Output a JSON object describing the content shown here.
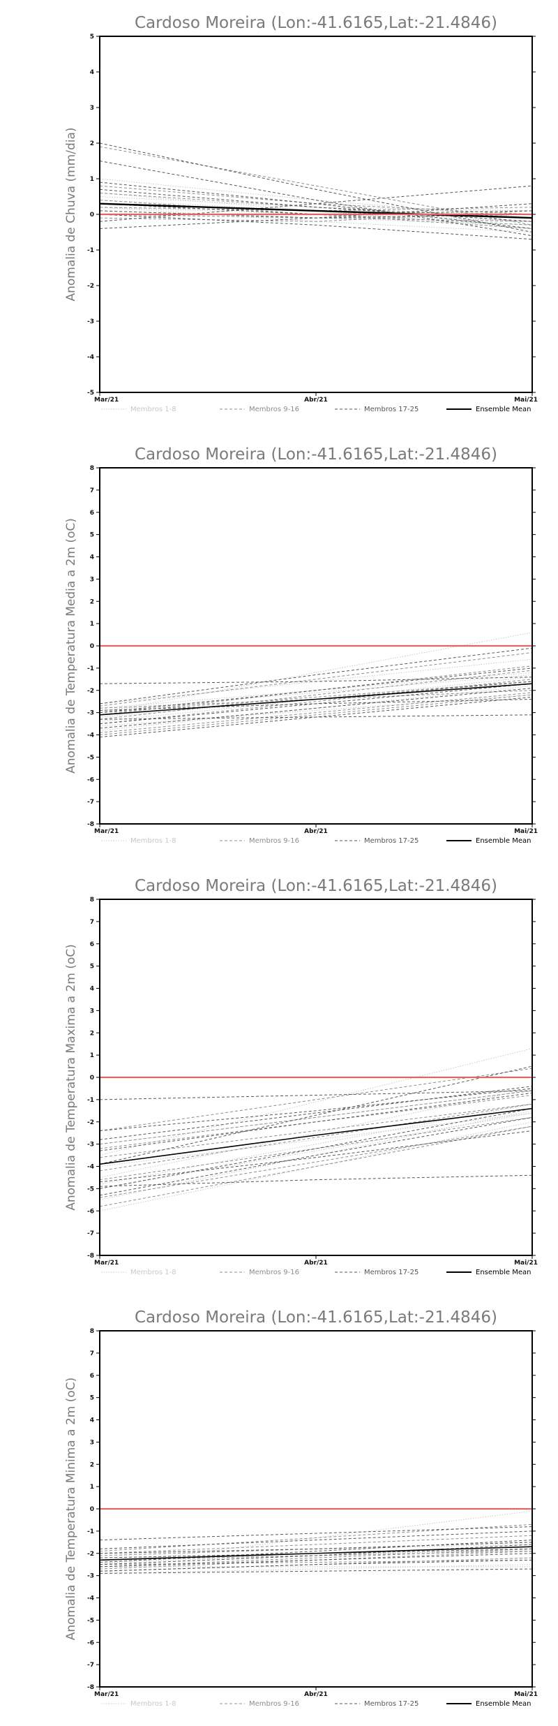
{
  "chart_data": [
    {
      "type": "line",
      "title": "Cardoso Moreira (Lon:-41.6165,Lat:-21.4846)",
      "ylabel": "Anomalia de Chuva (mm/dia)",
      "xlabel": "",
      "x": [
        "Mar/21",
        "Abr/21",
        "Mai/21"
      ],
      "ylim": [
        -5,
        5
      ],
      "yticks": [
        -5,
        -4,
        -3,
        -2,
        -1,
        0,
        1,
        2,
        3,
        4,
        5
      ],
      "grid": false,
      "reference_line": {
        "y": 0,
        "color": "#e06666"
      },
      "legend_position": "bottom",
      "series": [
        {
          "name": "Membros 1-8",
          "color": "#c8c8c8",
          "style": "dotted",
          "values": [
            [
              0.6,
              0.1,
              -0.4
            ],
            [
              0.2,
              0.0,
              -0.2
            ],
            [
              1.0,
              0.4,
              -0.1
            ],
            [
              0.5,
              0.2,
              0.1
            ],
            [
              0.1,
              -0.1,
              -0.3
            ],
            [
              0.3,
              0.1,
              0.0
            ],
            [
              0.4,
              0.1,
              -0.2
            ],
            [
              0.2,
              -0.2,
              -0.5
            ]
          ]
        },
        {
          "name": "Membros 9-16",
          "color": "#8c8c8c",
          "style": "dashed",
          "values": [
            [
              1.9,
              0.8,
              -0.3
            ],
            [
              0.6,
              0.2,
              -0.1
            ],
            [
              0.3,
              0.0,
              -0.3
            ],
            [
              -0.1,
              -0.2,
              0.1
            ],
            [
              0.8,
              0.3,
              0.0
            ],
            [
              0.0,
              -0.1,
              -0.2
            ],
            [
              0.4,
              0.0,
              -0.4
            ],
            [
              0.2,
              0.1,
              0.2
            ]
          ]
        },
        {
          "name": "Membros 17-25",
          "color": "#555555",
          "style": "dashed",
          "values": [
            [
              2.0,
              0.7,
              -0.5
            ],
            [
              1.5,
              0.4,
              -0.6
            ],
            [
              0.7,
              0.2,
              -0.2
            ],
            [
              -0.2,
              0.3,
              0.8
            ],
            [
              -0.4,
              -0.1,
              0.3
            ],
            [
              0.9,
              0.3,
              -0.4
            ],
            [
              0.0,
              -0.3,
              -0.7
            ],
            [
              0.3,
              0.0,
              0.1
            ],
            [
              0.1,
              -0.1,
              0.0
            ]
          ]
        },
        {
          "name": "Ensemble Mean",
          "color": "#000000",
          "style": "solid",
          "width": 2.4,
          "values": [
            [
              0.3,
              0.1,
              -0.1
            ]
          ]
        }
      ]
    },
    {
      "type": "line",
      "title": "Cardoso Moreira (Lon:-41.6165,Lat:-21.4846)",
      "ylabel": "Anomalia de Temperatura Media a 2m (oC)",
      "xlabel": "",
      "x": [
        "Mar/21",
        "Abr/21",
        "Mai/21"
      ],
      "ylim": [
        -8,
        8
      ],
      "yticks": [
        -8,
        -7,
        -6,
        -5,
        -4,
        -3,
        -2,
        -1,
        0,
        1,
        2,
        3,
        4,
        5,
        6,
        7,
        8
      ],
      "grid": false,
      "reference_line": {
        "y": 0,
        "color": "#e06666"
      },
      "legend_position": "bottom",
      "series": [
        {
          "name": "Membros 1-8",
          "color": "#c8c8c8",
          "style": "dotted",
          "values": [
            [
              -3.0,
              -1.2,
              0.6
            ],
            [
              -2.6,
              -1.6,
              -0.6
            ],
            [
              -3.4,
              -2.4,
              -1.4
            ],
            [
              -2.8,
              -2.0,
              -1.2
            ],
            [
              -3.8,
              -2.8,
              -1.8
            ],
            [
              -3.2,
              -2.4,
              -1.6
            ],
            [
              -3.6,
              -2.9,
              -2.2
            ],
            [
              -2.9,
              -2.1,
              -1.3
            ]
          ]
        },
        {
          "name": "Membros 9-16",
          "color": "#8c8c8c",
          "style": "dashed",
          "values": [
            [
              -2.7,
              -1.5,
              -0.3
            ],
            [
              -3.3,
              -2.2,
              -1.1
            ],
            [
              -4.0,
              -3.1,
              -2.2
            ],
            [
              -3.5,
              -2.5,
              -1.5
            ],
            [
              -3.0,
              -2.3,
              -1.6
            ],
            [
              -2.8,
              -2.4,
              -2.0
            ],
            [
              -3.9,
              -3.0,
              -2.1
            ],
            [
              -3.1,
              -2.0,
              -0.9
            ]
          ]
        },
        {
          "name": "Membros 17-25",
          "color": "#555555",
          "style": "dashed",
          "values": [
            [
              -2.6,
              -1.3,
              -0.1
            ],
            [
              -3.0,
              -2.0,
              -1.0
            ],
            [
              -1.7,
              -1.6,
              -1.4
            ],
            [
              -3.3,
              -3.2,
              -3.1
            ],
            [
              -3.7,
              -2.8,
              -1.9
            ],
            [
              -2.9,
              -2.6,
              -2.4
            ],
            [
              -4.1,
              -3.2,
              -2.3
            ],
            [
              -3.5,
              -2.6,
              -1.7
            ],
            [
              -3.1,
              -2.4,
              -1.6
            ]
          ]
        },
        {
          "name": "Ensemble Mean",
          "color": "#000000",
          "style": "solid",
          "width": 1.6,
          "values": [
            [
              -3.1,
              -2.4,
              -1.7
            ]
          ]
        }
      ]
    },
    {
      "type": "line",
      "title": "Cardoso Moreira (Lon:-41.6165,Lat:-21.4846)",
      "ylabel": "Anomalia de Temperatura Maxima a 2m (oC)",
      "xlabel": "",
      "x": [
        "Mar/21",
        "Abr/21",
        "Mai/21"
      ],
      "ylim": [
        -8,
        8
      ],
      "yticks": [
        -8,
        -7,
        -6,
        -5,
        -4,
        -3,
        -2,
        -1,
        0,
        1,
        2,
        3,
        4,
        5,
        6,
        7,
        8
      ],
      "grid": false,
      "reference_line": {
        "y": 0,
        "color": "#e06666"
      },
      "legend_position": "bottom",
      "series": [
        {
          "name": "Membros 1-8",
          "color": "#c8c8c8",
          "style": "dotted",
          "values": [
            [
              -3.5,
              -1.1,
              1.3
            ],
            [
              -4.5,
              -2.5,
              -0.5
            ],
            [
              -5.5,
              -3.5,
              -1.5
            ],
            [
              -4.0,
              -2.8,
              -1.6
            ],
            [
              -6.0,
              -4.0,
              -2.0
            ],
            [
              -3.0,
              -1.8,
              -0.6
            ],
            [
              -5.0,
              -3.3,
              -1.6
            ],
            [
              -4.8,
              -3.0,
              -1.2
            ]
          ]
        },
        {
          "name": "Membros 9-16",
          "color": "#8c8c8c",
          "style": "dashed",
          "values": [
            [
              -2.4,
              -1.0,
              0.4
            ],
            [
              -3.2,
              -2.0,
              -0.8
            ],
            [
              -5.8,
              -4.0,
              -2.2
            ],
            [
              -4.2,
              -2.7,
              -1.2
            ],
            [
              -3.6,
              -2.4,
              -1.2
            ],
            [
              -5.4,
              -3.8,
              -2.2
            ],
            [
              -4.6,
              -3.2,
              -1.8
            ],
            [
              -3.0,
              -1.8,
              -0.6
            ]
          ]
        },
        {
          "name": "Membros 17-25",
          "color": "#555555",
          "style": "dashed",
          "values": [
            [
              -1.0,
              -0.8,
              -0.6
            ],
            [
              -3.9,
              -1.7,
              0.5
            ],
            [
              -2.4,
              -1.5,
              -0.5
            ],
            [
              -4.9,
              -4.6,
              -4.4
            ],
            [
              -5.3,
              -3.5,
              -1.8
            ],
            [
              -3.3,
              -2.0,
              -0.7
            ],
            [
              -4.7,
              -3.6,
              -2.4
            ],
            [
              -2.8,
              -1.6,
              -0.4
            ],
            [
              -5.0,
              -3.2,
              -1.4
            ]
          ]
        },
        {
          "name": "Ensemble Mean",
          "color": "#000000",
          "style": "solid",
          "width": 1.6,
          "values": [
            [
              -3.9,
              -2.6,
              -1.4
            ]
          ]
        }
      ]
    },
    {
      "type": "line",
      "title": "Cardoso Moreira (Lon:-41.6165,Lat:-21.4846)",
      "ylabel": "Anomalia de Temperatura Minima a 2m (oC)",
      "xlabel": "",
      "x": [
        "Mar/21",
        "Abr/21",
        "Mai/21"
      ],
      "ylim": [
        -8,
        8
      ],
      "yticks": [
        -8,
        -7,
        -6,
        -5,
        -4,
        -3,
        -2,
        -1,
        0,
        1,
        2,
        3,
        4,
        5,
        6,
        7,
        8
      ],
      "grid": false,
      "reference_line": {
        "y": 0,
        "color": "#e06666"
      },
      "legend_position": "bottom",
      "series": [
        {
          "name": "Membros 1-8",
          "color": "#c8c8c8",
          "style": "dotted",
          "values": [
            [
              -2.5,
              -1.3,
              -0.1
            ],
            [
              -2.2,
              -2.0,
              -1.9
            ],
            [
              -2.8,
              -2.5,
              -2.2
            ],
            [
              -2.0,
              -1.8,
              -1.6
            ],
            [
              -2.9,
              -2.7,
              -2.5
            ],
            [
              -2.4,
              -2.1,
              -1.8
            ],
            [
              -2.6,
              -2.6,
              -2.6
            ],
            [
              -2.3,
              -2.0,
              -1.7
            ]
          ]
        },
        {
          "name": "Membros 9-16",
          "color": "#8c8c8c",
          "style": "dashed",
          "values": [
            [
              -1.9,
              -1.3,
              -0.7
            ],
            [
              -2.7,
              -2.3,
              -1.9
            ],
            [
              -2.1,
              -1.8,
              -1.5
            ],
            [
              -2.5,
              -2.4,
              -2.3
            ],
            [
              -2.8,
              -2.5,
              -2.2
            ],
            [
              -2.3,
              -2.1,
              -1.9
            ],
            [
              -2.6,
              -2.2,
              -1.8
            ],
            [
              -2.0,
              -1.6,
              -1.2
            ]
          ]
        },
        {
          "name": "Membros 17-25",
          "color": "#555555",
          "style": "dashed",
          "values": [
            [
              -1.4,
              -1.1,
              -0.8
            ],
            [
              -2.4,
              -1.9,
              -1.4
            ],
            [
              -1.8,
              -1.4,
              -1.0
            ],
            [
              -2.9,
              -2.8,
              -2.7
            ],
            [
              -2.2,
              -2.0,
              -1.8
            ],
            [
              -2.6,
              -2.3,
              -2.0
            ],
            [
              -2.0,
              -1.8,
              -1.5
            ],
            [
              -2.8,
              -2.5,
              -2.3
            ],
            [
              -2.5,
              -2.1,
              -1.6
            ]
          ]
        },
        {
          "name": "Ensemble Mean",
          "color": "#000000",
          "style": "solid",
          "width": 1.6,
          "values": [
            [
              -2.3,
              -2.0,
              -1.7
            ]
          ]
        }
      ]
    }
  ]
}
